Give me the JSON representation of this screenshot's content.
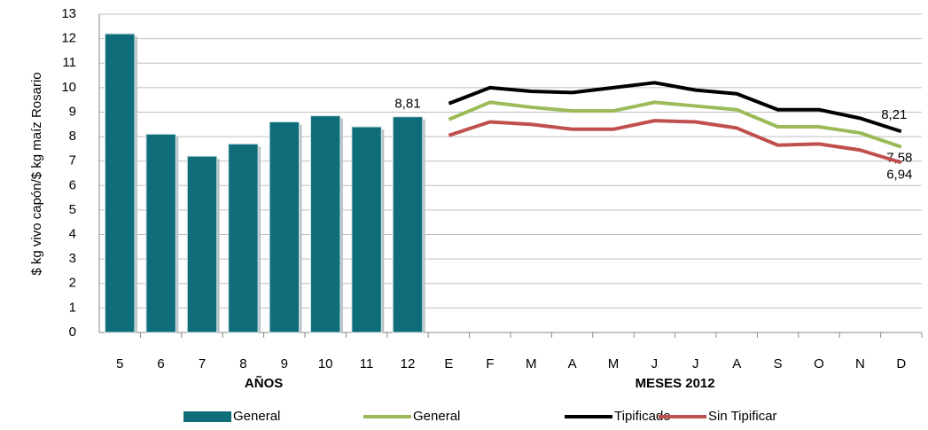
{
  "chart_data": {
    "type": "bar-line",
    "y_label": "$ kg vivo capón/$ kg maíz Rosario",
    "categories": [
      "5",
      "6",
      "7",
      "8",
      "9",
      "10",
      "11",
      "12",
      "E",
      "F",
      "M",
      "A",
      "M",
      "J",
      "J",
      "A",
      "S",
      "O",
      "N",
      "D"
    ],
    "annotations": [
      "AÑOS",
      "MESES 2012"
    ],
    "ylim": [
      0,
      13
    ],
    "yticks": [
      0,
      1,
      2,
      3,
      4,
      5,
      6,
      7,
      8,
      9,
      10,
      11,
      12,
      13
    ],
    "grid": true,
    "legend": "bottom",
    "series": [
      {
        "name": "General",
        "kind": "bar",
        "color": "#0f6d7a",
        "values": [
          12.2,
          8.1,
          7.2,
          7.7,
          8.6,
          8.85,
          8.4,
          8.81,
          null,
          null,
          null,
          null,
          null,
          null,
          null,
          null,
          null,
          null,
          null,
          null
        ],
        "value_labels": [
          null,
          null,
          null,
          null,
          null,
          null,
          null,
          "8,81",
          null,
          null,
          null,
          null,
          null,
          null,
          null,
          null,
          null,
          null,
          null,
          null
        ]
      },
      {
        "name": "General",
        "kind": "line",
        "color": "#9bbb59",
        "values": [
          null,
          null,
          null,
          null,
          null,
          null,
          null,
          null,
          8.7,
          9.4,
          9.2,
          9.05,
          9.05,
          9.4,
          9.25,
          9.1,
          8.4,
          8.4,
          8.15,
          7.58
        ],
        "value_labels": [
          null,
          null,
          null,
          null,
          null,
          null,
          null,
          null,
          null,
          null,
          null,
          null,
          null,
          null,
          null,
          null,
          null,
          null,
          null,
          "7,58"
        ]
      },
      {
        "name": "Tipificado",
        "kind": "line",
        "color": "#000000",
        "values": [
          null,
          null,
          null,
          null,
          null,
          null,
          null,
          null,
          9.35,
          10.0,
          9.85,
          9.8,
          10.0,
          10.2,
          9.9,
          9.75,
          9.1,
          9.1,
          8.75,
          8.21
        ],
        "value_labels": [
          null,
          null,
          null,
          null,
          null,
          null,
          null,
          null,
          null,
          null,
          null,
          null,
          null,
          null,
          null,
          null,
          null,
          null,
          null,
          "8,21"
        ]
      },
      {
        "name": "Sin Tipificar",
        "kind": "line",
        "color": "#c0504d",
        "values": [
          null,
          null,
          null,
          null,
          null,
          null,
          null,
          null,
          8.05,
          8.6,
          8.5,
          8.3,
          8.3,
          8.65,
          8.6,
          8.35,
          7.65,
          7.7,
          7.45,
          6.94
        ],
        "value_labels": [
          null,
          null,
          null,
          null,
          null,
          null,
          null,
          null,
          null,
          null,
          null,
          null,
          null,
          null,
          null,
          null,
          null,
          null,
          null,
          "6,94"
        ]
      }
    ]
  }
}
